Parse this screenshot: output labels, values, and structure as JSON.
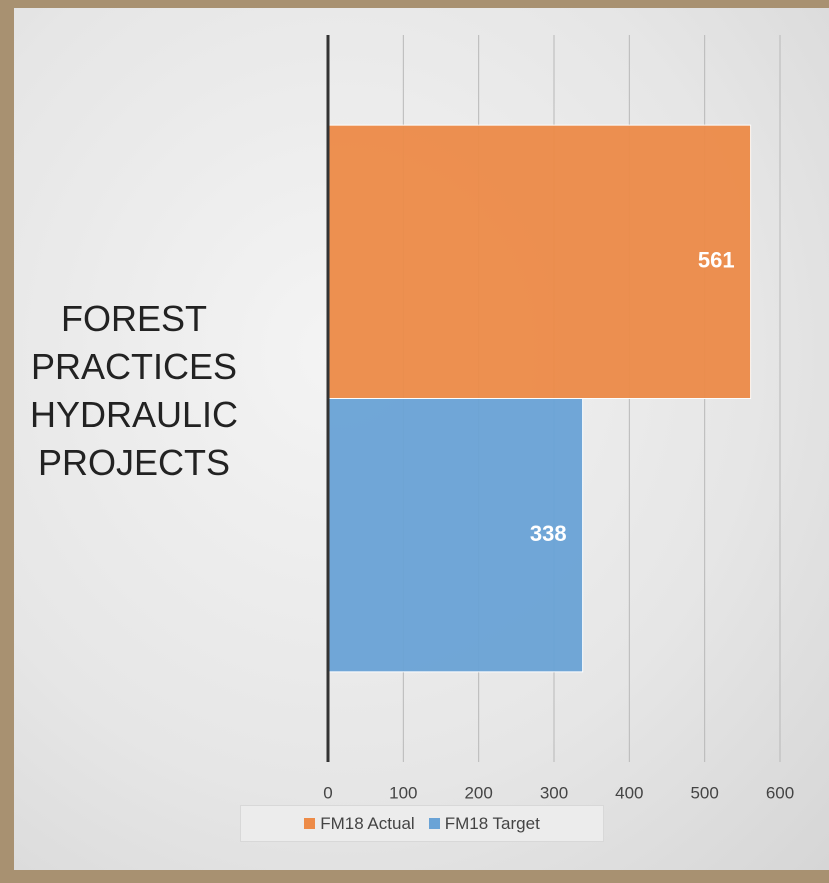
{
  "chart_data": {
    "type": "barh",
    "categories": [
      "FOREST PRACTICES HYDRAULIC PROJECTS"
    ],
    "series": [
      {
        "name": "FM18 Actual",
        "color": "#ed8b48",
        "values": [
          561
        ]
      },
      {
        "name": "FM18 Target",
        "color": "#6aa3d6",
        "values": [
          338
        ]
      }
    ],
    "xlim": [
      0,
      600
    ],
    "xticks": [
      0,
      100,
      200,
      300,
      400,
      500,
      600
    ],
    "grid": true,
    "data_labels": true,
    "legend": "bottom"
  }
}
